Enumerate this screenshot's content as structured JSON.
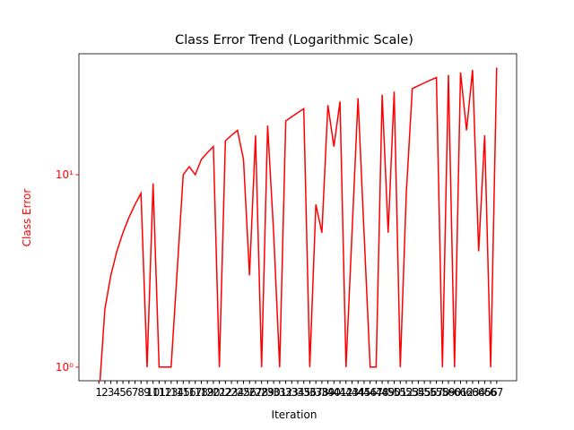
{
  "chart_data": {
    "type": "line",
    "title": "Class Error Trend (Logarithmic Scale)",
    "xlabel": "Iteration",
    "ylabel": "Class Error",
    "categories": [
      "1",
      "2",
      "3",
      "4",
      "5",
      "6",
      "7",
      "8",
      "9",
      "10",
      "11",
      "12",
      "13",
      "14",
      "15",
      "16",
      "17",
      "18",
      "19",
      "20",
      "21",
      "22",
      "23",
      "24",
      "25",
      "26",
      "27",
      "28",
      "29",
      "30",
      "31",
      "32",
      "33",
      "34",
      "35",
      "36",
      "37",
      "38",
      "39",
      "40",
      "41",
      "42",
      "43",
      "44",
      "45",
      "46",
      "47",
      "48",
      "49",
      "50",
      "51",
      "52",
      "53",
      "54",
      "55",
      "56",
      "57",
      "58",
      "59",
      "60",
      "61",
      "62",
      "63",
      "64",
      "65",
      "66",
      "67"
    ],
    "series": [
      {
        "name": "Class Error",
        "color": "#ff0000",
        "values": [
          0,
          2,
          3,
          4,
          5,
          6,
          7,
          8,
          1,
          9,
          1,
          1,
          1,
          3.2,
          10,
          11,
          10,
          12,
          13,
          14,
          1,
          15,
          16,
          17,
          12,
          3,
          16,
          1,
          18,
          5,
          1,
          19,
          20,
          21,
          22,
          1,
          7,
          5,
          23,
          14,
          24,
          1,
          5,
          25,
          5,
          1,
          1,
          26,
          5,
          27,
          1,
          8,
          28,
          29,
          30,
          31,
          32,
          1,
          33,
          1,
          34,
          17,
          35,
          4,
          16,
          1,
          36
        ]
      }
    ],
    "ylim": [
      0.85,
      42.5
    ],
    "yscale": "log",
    "yticks": [
      {
        "value": 1,
        "label": "10⁰"
      },
      {
        "value": 10,
        "label": "10¹"
      }
    ],
    "axis_color": "#ff0000"
  }
}
